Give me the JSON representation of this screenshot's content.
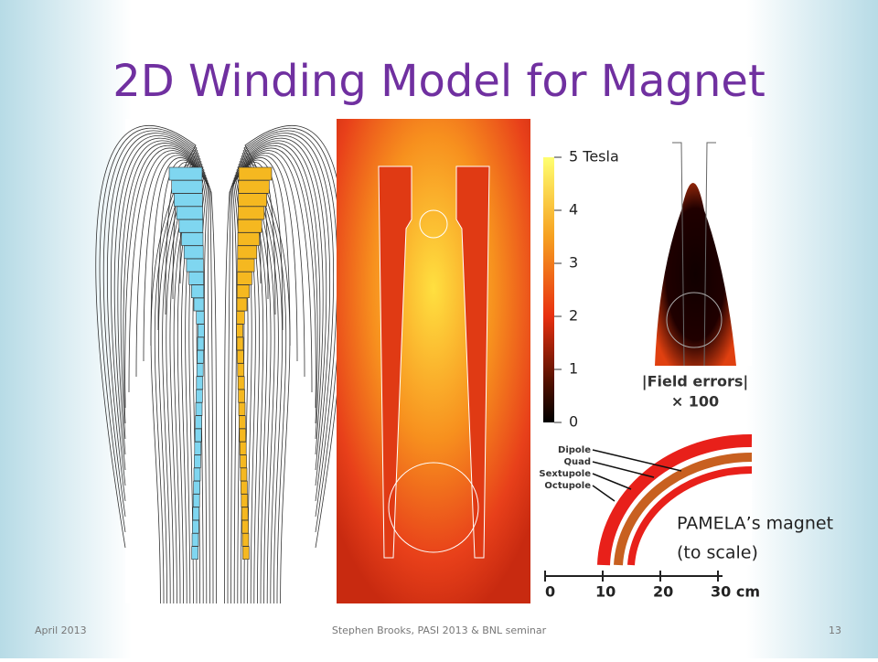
{
  "title": "2D Winding Model for Magnet",
  "colorbar": {
    "ticks": [
      "5 Tesla",
      "4",
      "3",
      "2",
      "1",
      "0"
    ]
  },
  "field_errors": [
    "|Field errors|",
    "× 100"
  ],
  "multipoles": [
    "Dipole",
    "Quad",
    "Sextupole",
    "Octupole"
  ],
  "scale_bar": [
    "0",
    "10",
    "20",
    "30 cm"
  ],
  "caption": [
    "PAMELA’s magnet",
    "(to scale)"
  ],
  "footer": {
    "date": "April 2013",
    "center": "Stephen Brooks, PASI 2013 & BNL seminar",
    "page": "13"
  }
}
